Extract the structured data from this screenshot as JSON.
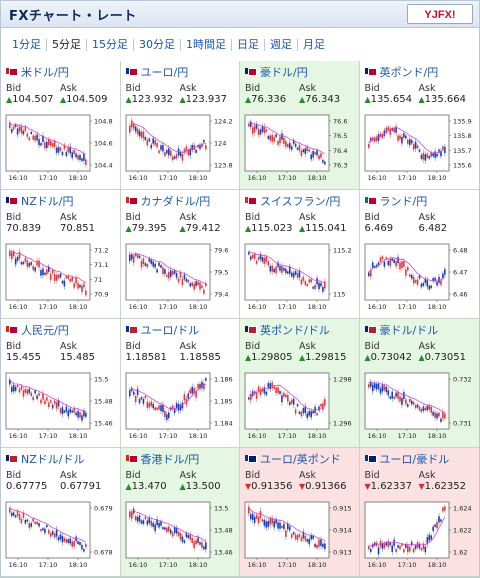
{
  "header": {
    "title": "FXチャート・レート",
    "logo": "YJFX!"
  },
  "tabs": [
    "1分足",
    "5分足",
    "15分足",
    "30分足",
    "1時間足",
    "日足",
    "週足",
    "月足"
  ],
  "active_tab": 1,
  "labels": {
    "bid": "Bid",
    "ask": "Ask"
  },
  "x_ticks": [
    "16:10",
    "17:10",
    "18:10"
  ],
  "colors": {
    "green_bg": "#e5f7e2",
    "red_bg": "#fbe1e1",
    "up": "#2a8a2a",
    "down": "#d03030",
    "bull": "#e03a3a",
    "bear": "#1a3fb0",
    "ma": "#d64ad6"
  },
  "pairs": [
    {
      "name": "米ドル/円",
      "bid": "104.507",
      "ask": "104.509",
      "dir": "up",
      "bg": "white",
      "flags": [
        "#b22234",
        "#bc002d"
      ],
      "ticks": [
        "104.8",
        "104.6",
        "104.4"
      ],
      "trend": "down",
      "chart_type": "line"
    },
    {
      "name": "ユーロ/円",
      "bid": "123.932",
      "ask": "123.937",
      "dir": "up",
      "bg": "white",
      "flags": [
        "#003399",
        "#bc002d"
      ],
      "ticks": [
        "124.2",
        "124",
        "123.8"
      ],
      "trend": "vdown",
      "chart_type": "line"
    },
    {
      "name": "豪ドル/円",
      "bid": "76.336",
      "ask": "76.343",
      "dir": "up",
      "bg": "green",
      "flags": [
        "#012169",
        "#bc002d"
      ],
      "ticks": [
        "76.6",
        "76.5",
        "76.4",
        "76.3"
      ],
      "trend": "down",
      "chart_type": "line"
    },
    {
      "name": "英ポンド/円",
      "bid": "135.654",
      "ask": "135.664",
      "dir": "up",
      "bg": "white",
      "flags": [
        "#012169",
        "#bc002d"
      ],
      "ticks": [
        "135.9",
        "135.8",
        "135.7",
        "135.6"
      ],
      "trend": "flat",
      "chart_type": "line"
    },
    {
      "name": "NZドル/円",
      "bid": "70.839",
      "ask": "70.851",
      "dir": "none",
      "bg": "white",
      "flags": [
        "#012169",
        "#bc002d"
      ],
      "ticks": [
        "71.2",
        "71.1",
        "71",
        "70.9"
      ],
      "trend": "down",
      "chart_type": "line"
    },
    {
      "name": "カナダドル/円",
      "bid": "79.395",
      "ask": "79.412",
      "dir": "up",
      "bg": "white",
      "flags": [
        "#d52b1e",
        "#bc002d"
      ],
      "ticks": [
        "79.6",
        "79.5",
        "79.4"
      ],
      "trend": "down",
      "chart_type": "line"
    },
    {
      "name": "スイスフラン/円",
      "bid": "115.023",
      "ask": "115.041",
      "dir": "up",
      "bg": "white",
      "flags": [
        "#d52b1e",
        "#bc002d"
      ],
      "ticks": [
        "115.2",
        "115"
      ],
      "trend": "down",
      "chart_type": "line"
    },
    {
      "name": "ランド/円",
      "bid": "6.469",
      "ask": "6.482",
      "dir": "none",
      "bg": "white",
      "flags": [
        "#007a4d",
        "#bc002d"
      ],
      "ticks": [
        "6.48",
        "6.47",
        "6.46"
      ],
      "trend": "flat",
      "chart_type": "line"
    },
    {
      "name": "人民元/円",
      "bid": "15.455",
      "ask": "15.485",
      "dir": "none",
      "bg": "white",
      "flags": [
        "#de2910",
        "#bc002d"
      ],
      "ticks": [
        "15.5",
        "15.48",
        "15.46"
      ],
      "trend": "down",
      "chart_type": "line"
    },
    {
      "name": "ユーロ/ドル",
      "bid": "1.18581",
      "ask": "1.18585",
      "dir": "none",
      "bg": "white",
      "flags": [
        "#003399",
        "#b22234"
      ],
      "ticks": [
        "1.186",
        "1.185",
        "1.184"
      ],
      "trend": "vup",
      "chart_type": "line"
    },
    {
      "name": "英ポンド/ドル",
      "bid": "1.29805",
      "ask": "1.29815",
      "dir": "up",
      "bg": "green",
      "flags": [
        "#012169",
        "#b22234"
      ],
      "ticks": [
        "1.298",
        "1.296"
      ],
      "trend": "flat",
      "chart_type": "line"
    },
    {
      "name": "豪ドル/ドル",
      "bid": "0.73042",
      "ask": "0.73051",
      "dir": "up",
      "bg": "green",
      "flags": [
        "#012169",
        "#b22234"
      ],
      "ticks": [
        "0.732",
        "0.731"
      ],
      "trend": "down",
      "chart_type": "line"
    },
    {
      "name": "NZドル/ドル",
      "bid": "0.67775",
      "ask": "0.67791",
      "dir": "none",
      "bg": "white",
      "flags": [
        "#012169",
        "#b22234"
      ],
      "ticks": [
        "0.679",
        "0.678"
      ],
      "trend": "down",
      "chart_type": "line"
    },
    {
      "name": "香港ドル/円",
      "bid": "13.470",
      "ask": "13.500",
      "dir": "up",
      "bg": "green",
      "flags": [
        "#de2910",
        "#bc002d"
      ],
      "ticks": [
        "13.5",
        "13.48",
        "13.46"
      ],
      "trend": "down",
      "chart_type": "line"
    },
    {
      "name": "ユーロ/英ポンド",
      "bid": "0.91356",
      "ask": "0.91366",
      "dir": "down",
      "bg": "red",
      "flags": [
        "#003399",
        "#012169"
      ],
      "ticks": [
        "0.915",
        "0.914",
        "0.913"
      ],
      "trend": "down",
      "chart_type": "line"
    },
    {
      "name": "ユーロ/豪ドル",
      "bid": "1.62337",
      "ask": "1.62352",
      "dir": "down",
      "bg": "red",
      "flags": [
        "#003399",
        "#012169"
      ],
      "ticks": [
        "1.624",
        "1.622",
        "1.62"
      ],
      "trend": "up",
      "chart_type": "line"
    }
  ]
}
